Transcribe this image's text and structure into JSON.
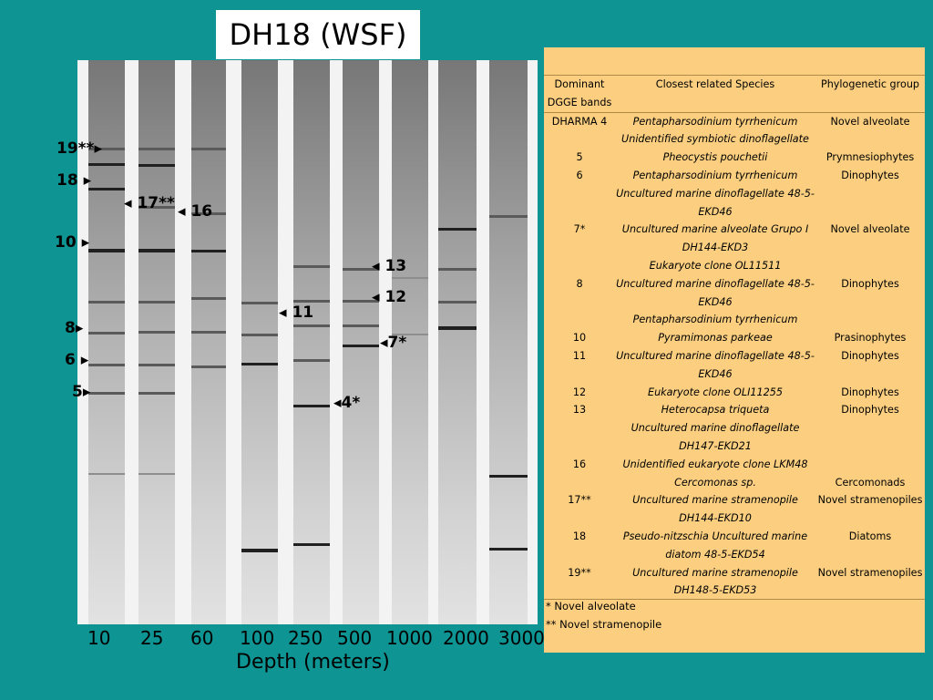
{
  "title": "DH18 (WSF)",
  "x_axis": {
    "label": "Depth (meters)",
    "depths": [
      "10",
      "25",
      "60",
      "100",
      "250",
      "500",
      "1000",
      "2000",
      "3000"
    ]
  },
  "markers": {
    "m19": "19**",
    "m18": "18",
    "m17": "17**",
    "m16": "16",
    "m10": "10",
    "m13": "13",
    "m12": "12",
    "m11": "11",
    "m8": "8",
    "m7": "7*",
    "m6": "6",
    "m5": "5",
    "m4": "4*"
  },
  "table": {
    "headers": [
      "Dominant DGGE bands",
      "Closest related Species",
      "Phylogenetic group"
    ],
    "rows": [
      [
        "DHARMA 4",
        "Pentapharsodinium tyrrhenicum",
        "Novel alveolate"
      ],
      [
        "",
        "Unidentified symbiotic dinoflagellate",
        ""
      ],
      [
        "5",
        "Pheocystis pouchetii",
        "Prymnesiophytes"
      ],
      [
        "6",
        "Pentapharsodinium tyrrhenicum",
        "Dinophytes"
      ],
      [
        "",
        "Uncultured marine dinoflagellate 48-5-EKD46",
        ""
      ],
      [
        "7*",
        "Uncultured marine alveolate Grupo I DH144-EKD3",
        "Novel alveolate"
      ],
      [
        "",
        "Eukaryote clone OL11511",
        ""
      ],
      [
        "8",
        "Uncultured marine dinoflagellate 48-5-EKD46",
        "Dinophytes"
      ],
      [
        "",
        "Pentapharsodinium tyrrhenicum",
        ""
      ],
      [
        "10",
        "Pyramimonas parkeae",
        "Prasinophytes"
      ],
      [
        "11",
        "Uncultured marine dinoflagellate 48-5-EKD46",
        "Dinophytes"
      ],
      [
        "12",
        "Eukaryote clone OLI11255",
        "Dinophytes"
      ],
      [
        "13",
        "Heterocapsa triqueta",
        "Dinophytes"
      ],
      [
        "",
        "Uncultured marine dinoflagellate DH147-EKD21",
        ""
      ],
      [
        "16",
        "Unidentified eukaryote clone LKM48",
        ""
      ],
      [
        "",
        "Cercomonas sp.",
        "Cercomonads"
      ],
      [
        "17**",
        "Uncultured marine stramenopile DH144-EKD10",
        "Novel stramenopiles"
      ],
      [
        "18",
        "Pseudo-nitzschia Uncultured marine diatom 48-5-EKD54",
        "Diatoms"
      ],
      [
        "19**",
        "Uncultured marine stramenopile DH148-5-EKD53",
        "Novel stramenopiles"
      ]
    ],
    "footnotes": [
      "* Novel alveolate",
      "** Novel stramenopile"
    ]
  },
  "colors": {
    "background": "#0f9494",
    "table_background": "#fccf80",
    "title_background": "#ffffff"
  }
}
